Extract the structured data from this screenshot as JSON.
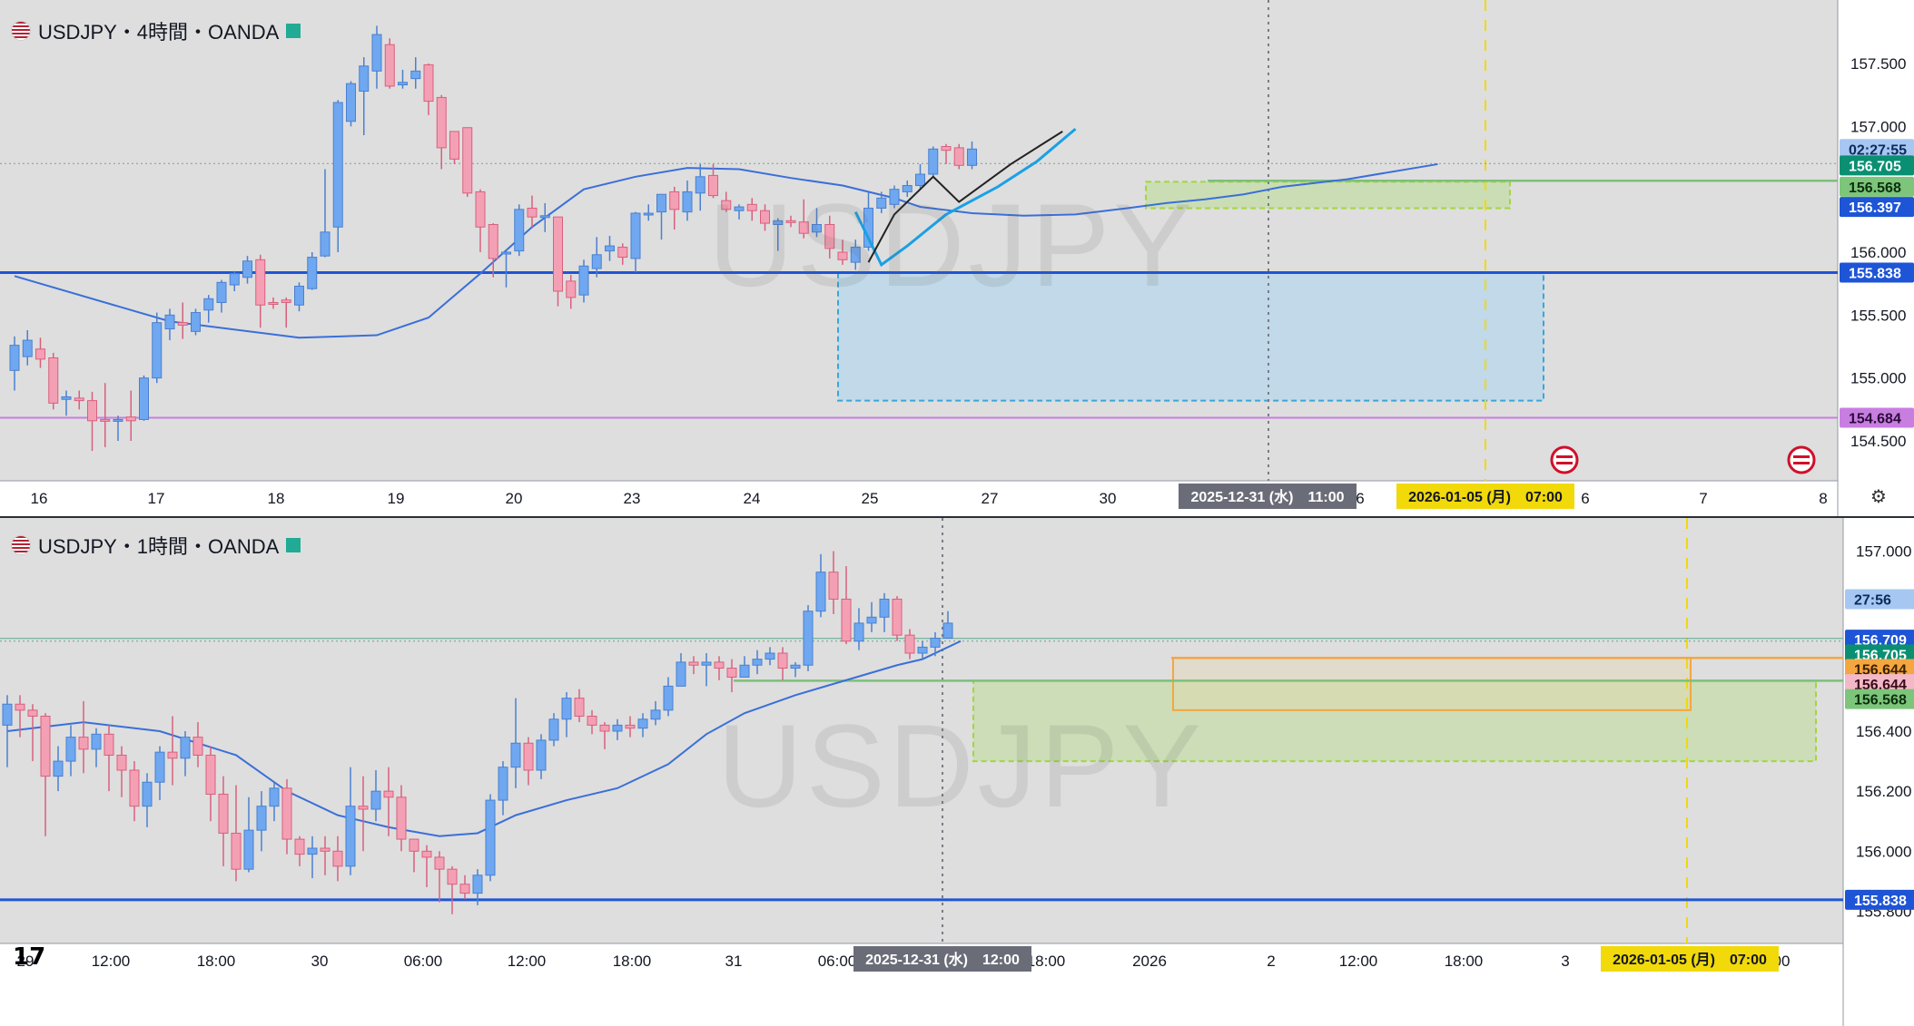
{
  "colors": {
    "bg": "#dedede",
    "up": "#6fa8f0",
    "down": "#f4a0b4",
    "up_border": "#4a80d0",
    "down_border": "#d8607e",
    "ma": "#3a6fd8",
    "blue_line": "#1f55d6",
    "purple_line": "#c87ee0",
    "green_line": "#7dc07a",
    "zone_blue": "#bcd8ea",
    "zone_blue_border": "#39a6d9",
    "zone_green": "#c9ddb0",
    "zone_green_border": "#a3d63c",
    "zone_orange": "#f4a640",
    "event_line": "#f1d90a"
  },
  "top": {
    "title": "USDJPY・4時間・OANDA",
    "watermark": "USDJPY",
    "price_axis": [
      {
        "text": "157.500",
        "price": 157.5
      },
      {
        "text": "157.000",
        "price": 157.0
      },
      {
        "text": "156.000",
        "price": 156.0
      },
      {
        "text": "155.500",
        "price": 155.5
      },
      {
        "text": "155.000",
        "price": 155.0
      },
      {
        "text": "154.500",
        "price": 154.5
      }
    ],
    "price_tags": [
      {
        "text": "02:27:55",
        "price": 156.82,
        "bg": "#a6c7f2",
        "fg": "#0b2a5a"
      },
      {
        "text": "156.705",
        "price": 156.69,
        "bg": "#0a8f72",
        "fg": "#ffffff"
      },
      {
        "text": "156.568",
        "price": 156.52,
        "bg": "#7cc57b",
        "fg": "#0c2e0c"
      },
      {
        "text": "156.397",
        "price": 156.36,
        "bg": "#1e54d6",
        "fg": "#ffffff"
      },
      {
        "text": "155.838",
        "price": 155.838,
        "bg": "#1e54d6",
        "fg": "#ffffff"
      },
      {
        "text": "154.684",
        "price": 154.684,
        "bg": "#c87ee0",
        "fg": "#2a0a3a"
      }
    ],
    "time_axis": [
      "16",
      "17",
      "18",
      "19",
      "20",
      "23",
      "24",
      "25",
      "27",
      "30",
      "6",
      "6",
      "7",
      "8"
    ],
    "crosshair_label": "2025-12-31 (水)　11:00",
    "event_label": "2026-01-05 (月)　07:00",
    "levels": {
      "blue": 155.838,
      "purple": 154.684,
      "green": 156.568,
      "gray": 156.705
    },
    "candles": [
      [
        155.06,
        155.26,
        154.9,
        155.33
      ],
      [
        155.17,
        155.3,
        155.1,
        155.38
      ],
      [
        155.23,
        155.15,
        155.08,
        155.32
      ],
      [
        155.16,
        154.8,
        154.75,
        155.2
      ],
      [
        154.83,
        154.85,
        154.7,
        154.9
      ],
      [
        154.84,
        154.82,
        154.75,
        154.9
      ],
      [
        154.82,
        154.66,
        154.42,
        154.89
      ],
      [
        154.67,
        154.66,
        154.45,
        154.96
      ],
      [
        154.66,
        154.67,
        154.5,
        154.7
      ],
      [
        154.69,
        154.66,
        154.5,
        154.9
      ],
      [
        154.67,
        155.0,
        154.66,
        155.02
      ],
      [
        155.0,
        155.44,
        154.96,
        155.52
      ],
      [
        155.39,
        155.5,
        155.3,
        155.55
      ],
      [
        155.44,
        155.42,
        155.31,
        155.6
      ],
      [
        155.37,
        155.52,
        155.34,
        155.55
      ],
      [
        155.54,
        155.63,
        155.44,
        155.66
      ],
      [
        155.6,
        155.76,
        155.52,
        155.78
      ],
      [
        155.74,
        155.83,
        155.69,
        155.85
      ],
      [
        155.8,
        155.93,
        155.75,
        155.97
      ],
      [
        155.94,
        155.58,
        155.4,
        155.98
      ],
      [
        155.6,
        155.59,
        155.55,
        155.64
      ],
      [
        155.62,
        155.6,
        155.4,
        155.64
      ],
      [
        155.58,
        155.73,
        155.53,
        155.76
      ],
      [
        155.71,
        155.96,
        155.7,
        156.0
      ],
      [
        155.97,
        156.16,
        155.96,
        156.66
      ],
      [
        156.2,
        157.19,
        156.0,
        157.21
      ],
      [
        157.04,
        157.34,
        157.0,
        157.36
      ],
      [
        157.28,
        157.48,
        156.93,
        157.55
      ],
      [
        157.44,
        157.73,
        157.3,
        157.8
      ],
      [
        157.65,
        157.32,
        157.3,
        157.7
      ],
      [
        157.33,
        157.35,
        157.3,
        157.45
      ],
      [
        157.38,
        157.44,
        157.3,
        157.55
      ],
      [
        157.49,
        157.2,
        157.09,
        157.5
      ],
      [
        157.23,
        156.83,
        156.66,
        157.25
      ],
      [
        156.96,
        156.74,
        156.7,
        156.96
      ],
      [
        156.99,
        156.47,
        156.44,
        156.99
      ],
      [
        156.48,
        156.2,
        156.0,
        156.5
      ],
      [
        156.22,
        155.95,
        155.8,
        156.23
      ],
      [
        155.99,
        156.0,
        155.72,
        156.02
      ],
      [
        156.01,
        156.34,
        155.97,
        156.38
      ],
      [
        156.35,
        156.28,
        156.2,
        156.45
      ],
      [
        156.29,
        156.29,
        156.16,
        156.39
      ],
      [
        156.28,
        155.69,
        155.57,
        156.28
      ],
      [
        155.77,
        155.64,
        155.55,
        155.82
      ],
      [
        155.66,
        155.89,
        155.6,
        155.94
      ],
      [
        155.87,
        155.98,
        155.8,
        156.12
      ],
      [
        156.01,
        156.05,
        155.93,
        156.13
      ],
      [
        156.04,
        155.96,
        155.9,
        156.07
      ],
      [
        155.95,
        156.31,
        155.84,
        156.32
      ],
      [
        156.3,
        156.31,
        156.25,
        156.38
      ],
      [
        156.32,
        156.46,
        156.1,
        156.46
      ],
      [
        156.48,
        156.34,
        156.18,
        156.52
      ],
      [
        156.32,
        156.48,
        156.25,
        156.57
      ],
      [
        156.47,
        156.6,
        156.33,
        156.7
      ],
      [
        156.61,
        156.45,
        156.43,
        156.7
      ],
      [
        156.41,
        156.34,
        156.32,
        156.48
      ],
      [
        156.33,
        156.36,
        156.26,
        156.38
      ],
      [
        156.38,
        156.33,
        156.25,
        156.43
      ],
      [
        156.33,
        156.23,
        156.17,
        156.38
      ],
      [
        156.22,
        156.25,
        156.01,
        156.27
      ],
      [
        156.25,
        156.24,
        156.2,
        156.29
      ],
      [
        156.24,
        156.15,
        156.11,
        156.42
      ],
      [
        156.16,
        156.22,
        156.12,
        156.35
      ],
      [
        156.22,
        156.03,
        155.95,
        156.29
      ],
      [
        156.0,
        155.94,
        155.9,
        156.1
      ],
      [
        155.92,
        156.04,
        155.86,
        156.1
      ],
      [
        156.04,
        156.35,
        156.01,
        156.48
      ],
      [
        156.35,
        156.43,
        156.31,
        156.48
      ],
      [
        156.38,
        156.5,
        156.35,
        156.53
      ],
      [
        156.48,
        156.53,
        156.44,
        156.57
      ],
      [
        156.53,
        156.62,
        156.5,
        156.7
      ],
      [
        156.62,
        156.82,
        156.6,
        156.84
      ],
      [
        156.84,
        156.81,
        156.7,
        156.86
      ],
      [
        156.83,
        156.69,
        156.66,
        156.86
      ],
      [
        156.69,
        156.82,
        156.66,
        156.88
      ]
    ],
    "ma": [
      [
        0,
        155.81
      ],
      [
        12,
        155.45
      ],
      [
        22,
        155.32
      ],
      [
        28,
        155.34
      ],
      [
        32,
        155.48
      ],
      [
        36,
        155.83
      ],
      [
        40,
        156.2
      ],
      [
        44,
        156.5
      ],
      [
        48,
        156.6
      ],
      [
        52,
        156.67
      ],
      [
        56,
        156.66
      ],
      [
        60,
        156.59
      ],
      [
        64,
        156.53
      ],
      [
        68,
        156.43
      ],
      [
        70,
        156.36
      ],
      [
        74,
        156.31
      ],
      [
        78,
        156.29
      ],
      [
        82,
        156.3
      ],
      [
        86,
        156.35
      ],
      [
        89,
        156.39
      ],
      [
        92,
        156.42
      ],
      [
        95,
        156.46
      ],
      [
        98,
        156.52
      ],
      [
        103,
        156.58
      ],
      [
        110,
        156.7
      ]
    ]
  },
  "bottom": {
    "title": "USDJPY・1時間・OANDA",
    "watermark": "USDJPY",
    "price_axis": [
      {
        "text": "157.000",
        "price": 157.0
      },
      {
        "text": "156.400",
        "price": 156.4
      },
      {
        "text": "156.200",
        "price": 156.2
      },
      {
        "text": "156.000",
        "price": 156.0
      },
      {
        "text": "155.800",
        "price": 155.8
      }
    ],
    "price_tags": [
      {
        "text": "27:56",
        "price": 156.84,
        "bg": "#a6c7f2",
        "fg": "#0b2a5a"
      },
      {
        "text": "156.709",
        "price": 156.705,
        "bg": "#1e54d6",
        "fg": "#ffffff"
      },
      {
        "text": "156.705",
        "price": 156.656,
        "bg": "#0a8f72",
        "fg": "#ffffff"
      },
      {
        "text": "156.644",
        "price": 156.607,
        "bg": "#f4a640",
        "fg": "#3a2000"
      },
      {
        "text": "156.644",
        "price": 156.557,
        "bg": "#f4b9c8",
        "fg": "#3a0a18"
      },
      {
        "text": "156.568",
        "price": 156.507,
        "bg": "#7cc57b",
        "fg": "#0c2e0c"
      },
      {
        "text": "155.838",
        "price": 155.838,
        "bg": "#1e54d6",
        "fg": "#ffffff"
      }
    ],
    "time_axis": [
      "29",
      "12:00",
      "18:00",
      "30",
      "06:00",
      "12:00",
      "18:00",
      "31",
      "06:00",
      "18:00",
      "2026",
      "2",
      "12:00",
      "18:00",
      "3",
      "00"
    ],
    "crosshair_label": "2025-12-31 (水)　12:00",
    "event_label": "2026-01-05 (月)　07:00",
    "levels": {
      "blue": 155.838,
      "green": 156.568,
      "teal": 156.709,
      "teal2": 156.705
    },
    "candles": [
      [
        156.42,
        156.49,
        156.28,
        156.52
      ],
      [
        156.49,
        156.47,
        156.38,
        156.52
      ],
      [
        156.47,
        156.45,
        156.3,
        156.49
      ],
      [
        156.45,
        156.25,
        156.05,
        156.46
      ],
      [
        156.25,
        156.3,
        156.2,
        156.35
      ],
      [
        156.3,
        156.38,
        156.25,
        156.42
      ],
      [
        156.38,
        156.34,
        156.26,
        156.5
      ],
      [
        156.34,
        156.39,
        156.28,
        156.41
      ],
      [
        156.39,
        156.32,
        156.2,
        156.42
      ],
      [
        156.32,
        156.27,
        156.18,
        156.35
      ],
      [
        156.27,
        156.15,
        156.1,
        156.3
      ],
      [
        156.15,
        156.23,
        156.08,
        156.26
      ],
      [
        156.23,
        156.33,
        156.17,
        156.35
      ],
      [
        156.33,
        156.31,
        156.22,
        156.45
      ],
      [
        156.31,
        156.38,
        156.25,
        156.4
      ],
      [
        156.38,
        156.32,
        156.28,
        156.43
      ],
      [
        156.32,
        156.19,
        156.1,
        156.35
      ],
      [
        156.19,
        156.06,
        155.95,
        156.25
      ],
      [
        156.06,
        155.94,
        155.9,
        156.22
      ],
      [
        155.94,
        156.07,
        155.93,
        156.18
      ],
      [
        156.07,
        156.15,
        156.0,
        156.2
      ],
      [
        156.15,
        156.21,
        156.1,
        156.23
      ],
      [
        156.21,
        156.04,
        155.99,
        156.24
      ],
      [
        156.04,
        155.99,
        155.95,
        156.05
      ],
      [
        155.99,
        156.01,
        155.91,
        156.05
      ],
      [
        156.01,
        156.0,
        155.92,
        156.05
      ],
      [
        156.0,
        155.95,
        155.9,
        156.05
      ],
      [
        155.95,
        156.15,
        155.92,
        156.28
      ],
      [
        156.15,
        156.14,
        156.0,
        156.25
      ],
      [
        156.14,
        156.2,
        156.1,
        156.27
      ],
      [
        156.2,
        156.18,
        156.05,
        156.28
      ],
      [
        156.18,
        156.04,
        156.0,
        156.22
      ],
      [
        156.04,
        156.0,
        155.93,
        156.04
      ],
      [
        156.0,
        155.98,
        155.88,
        156.02
      ],
      [
        155.98,
        155.94,
        155.83,
        156.0
      ],
      [
        155.94,
        155.89,
        155.79,
        155.95
      ],
      [
        155.89,
        155.86,
        155.84,
        155.92
      ],
      [
        155.86,
        155.92,
        155.82,
        155.94
      ],
      [
        155.92,
        156.17,
        155.9,
        156.19
      ],
      [
        156.17,
        156.28,
        156.12,
        156.3
      ],
      [
        156.28,
        156.36,
        156.21,
        156.51
      ],
      [
        156.36,
        156.27,
        156.22,
        156.38
      ],
      [
        156.27,
        156.37,
        156.24,
        156.39
      ],
      [
        156.37,
        156.44,
        156.35,
        156.46
      ],
      [
        156.44,
        156.51,
        156.38,
        156.53
      ],
      [
        156.51,
        156.45,
        156.43,
        156.54
      ],
      [
        156.45,
        156.42,
        156.39,
        156.47
      ],
      [
        156.42,
        156.4,
        156.34,
        156.43
      ],
      [
        156.4,
        156.42,
        156.37,
        156.44
      ],
      [
        156.42,
        156.41,
        156.38,
        156.45
      ],
      [
        156.41,
        156.44,
        156.38,
        156.46
      ],
      [
        156.44,
        156.47,
        156.42,
        156.5
      ],
      [
        156.47,
        156.55,
        156.45,
        156.58
      ],
      [
        156.55,
        156.63,
        156.55,
        156.66
      ],
      [
        156.63,
        156.62,
        156.59,
        156.65
      ],
      [
        156.62,
        156.63,
        156.55,
        156.66
      ],
      [
        156.63,
        156.61,
        156.57,
        156.65
      ],
      [
        156.61,
        156.58,
        156.53,
        156.64
      ],
      [
        156.58,
        156.62,
        156.58,
        156.65
      ],
      [
        156.62,
        156.64,
        156.59,
        156.67
      ],
      [
        156.64,
        156.66,
        156.62,
        156.68
      ],
      [
        156.66,
        156.61,
        156.57,
        156.68
      ],
      [
        156.61,
        156.62,
        156.58,
        156.63
      ],
      [
        156.62,
        156.8,
        156.6,
        156.82
      ],
      [
        156.8,
        156.93,
        156.78,
        156.99
      ],
      [
        156.93,
        156.84,
        156.79,
        157.0
      ],
      [
        156.84,
        156.7,
        156.69,
        156.95
      ],
      [
        156.7,
        156.76,
        156.67,
        156.81
      ],
      [
        156.76,
        156.78,
        156.73,
        156.83
      ],
      [
        156.78,
        156.84,
        156.73,
        156.86
      ],
      [
        156.84,
        156.72,
        156.7,
        156.85
      ],
      [
        156.72,
        156.66,
        156.64,
        156.74
      ],
      [
        156.66,
        156.68,
        156.64,
        156.7
      ],
      [
        156.68,
        156.71,
        156.65,
        156.73
      ],
      [
        156.71,
        156.76,
        156.71,
        156.8
      ]
    ],
    "ma": [
      [
        0,
        156.4
      ],
      [
        6,
        156.43
      ],
      [
        12,
        156.4
      ],
      [
        18,
        156.32
      ],
      [
        22,
        156.2
      ],
      [
        26,
        156.12
      ],
      [
        30,
        156.08
      ],
      [
        34,
        156.05
      ],
      [
        37,
        156.06
      ],
      [
        40,
        156.12
      ],
      [
        44,
        156.17
      ],
      [
        48,
        156.21
      ],
      [
        52,
        156.29
      ],
      [
        55,
        156.39
      ],
      [
        58,
        156.46
      ],
      [
        62,
        156.52
      ],
      [
        66,
        156.57
      ],
      [
        70,
        156.62
      ],
      [
        72,
        156.64
      ],
      [
        75,
        156.7
      ]
    ]
  }
}
